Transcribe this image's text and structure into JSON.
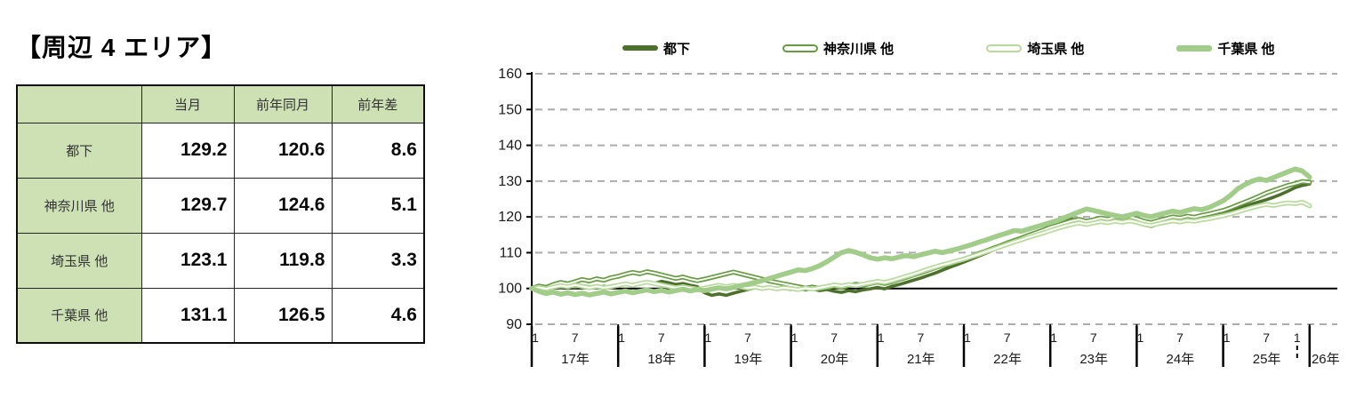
{
  "title": "【周辺 4 エリア】",
  "table": {
    "columns": [
      "",
      "当月",
      "前年同月",
      "前年差"
    ],
    "rows": [
      {
        "label": "都下",
        "values": [
          "129.2",
          "120.6",
          "8.6"
        ]
      },
      {
        "label": "神奈川県 他",
        "values": [
          "129.7",
          "124.6",
          "5.1"
        ]
      },
      {
        "label": "埼玉県 他",
        "values": [
          "123.1",
          "119.8",
          "3.3"
        ]
      },
      {
        "label": "千葉県 他",
        "values": [
          "131.1",
          "126.5",
          "4.6"
        ]
      }
    ],
    "header_bg_color": "#cde1b5"
  },
  "chart_data": {
    "type": "line",
    "interval": "monthly",
    "x_start": "2017-01",
    "x_end": "2026-01",
    "ylim": [
      90,
      160
    ],
    "yticks": [
      90,
      100,
      110,
      120,
      130,
      140,
      150,
      160
    ],
    "baseline_value": 100,
    "grid": "dashed-horizontal",
    "legend_position": "top",
    "month_tick_labels": [
      "1",
      "7"
    ],
    "year_labels": [
      "17年",
      "18年",
      "19年",
      "20年",
      "21年",
      "22年",
      "23年",
      "24年",
      "25年",
      "26年"
    ],
    "gridline_color": "#acacac",
    "series": [
      {
        "name": "都下",
        "key": "tokyo-outskirts",
        "color": "#4e702d",
        "style": "solid",
        "values": [
          100.0,
          100.4,
          100.0,
          100.6,
          100.2,
          100.7,
          100.3,
          100.8,
          100.5,
          100.2,
          100.6,
          100.3,
          100.8,
          101.3,
          100.9,
          101.5,
          101.9,
          101.4,
          102.0,
          101.6,
          101.1,
          101.4,
          100.9,
          100.5,
          98.8,
          98.1,
          98.5,
          98.1,
          98.7,
          99.2,
          99.7,
          100.2,
          99.8,
          100.2,
          99.8,
          100.1,
          99.7,
          100.0,
          99.6,
          99.9,
          99.4,
          99.7,
          99.2,
          98.9,
          99.4,
          99.1,
          99.6,
          99.9,
          100.3,
          99.9,
          100.6,
          101.1,
          101.7,
          102.3,
          102.9,
          103.6,
          104.3,
          105.1,
          105.9,
          106.6,
          107.4,
          108.2,
          109.0,
          109.8,
          110.7,
          111.5,
          112.3,
          113.1,
          113.9,
          114.7,
          115.5,
          116.3,
          117.2,
          118.0,
          118.8,
          119.4,
          118.7,
          117.9,
          118.5,
          119.1,
          119.6,
          119.2,
          119.8,
          119.4,
          118.9,
          117.7,
          117.3,
          118.0,
          118.7,
          119.3,
          119.0,
          119.5,
          119.3,
          119.8,
          120.2,
          120.6,
          121.0,
          121.6,
          122.3,
          123.0,
          123.6,
          124.2,
          124.8,
          125.5,
          126.3,
          127.2,
          128.2,
          128.8,
          129.2
        ]
      },
      {
        "name": "神奈川県 他",
        "key": "kanagawa",
        "color": "#669b41",
        "style": "outlined",
        "values": [
          100.0,
          100.7,
          100.3,
          101.1,
          101.7,
          101.3,
          101.9,
          102.5,
          102.1,
          102.7,
          102.3,
          103.0,
          103.4,
          104.0,
          104.5,
          104.1,
          104.7,
          104.3,
          103.8,
          103.3,
          102.8,
          103.2,
          102.6,
          102.2,
          102.6,
          103.1,
          103.6,
          104.1,
          104.6,
          104.1,
          103.6,
          103.1,
          102.6,
          102.1,
          101.7,
          101.3,
          100.9,
          100.5,
          100.1,
          100.4,
          100.0,
          100.3,
          100.7,
          100.3,
          100.8,
          101.2,
          100.9,
          101.4,
          101.8,
          101.4,
          101.9,
          102.5,
          103.1,
          103.8,
          104.4,
          105.1,
          105.8,
          106.4,
          106.9,
          107.5,
          108.2,
          108.9,
          109.7,
          110.4,
          111.2,
          111.9,
          112.7,
          113.4,
          114.1,
          114.9,
          115.6,
          116.3,
          117.1,
          117.7,
          118.3,
          118.9,
          119.3,
          118.8,
          119.2,
          119.7,
          119.4,
          119.9,
          119.6,
          120.0,
          119.5,
          118.8,
          118.4,
          119.0,
          119.5,
          120.0,
          119.7,
          120.2,
          119.9,
          120.4,
          120.8,
          121.3,
          121.8,
          122.5,
          123.3,
          124.1,
          124.9,
          125.8,
          126.7,
          127.4,
          128.1,
          128.8,
          129.3,
          129.9,
          129.7
        ]
      },
      {
        "name": "埼玉県 他",
        "key": "saitama",
        "color": "#b7da9b",
        "style": "outlined",
        "values": [
          100.0,
          100.3,
          99.9,
          100.4,
          100.8,
          100.5,
          101.0,
          100.6,
          100.2,
          100.6,
          100.2,
          100.5,
          100.9,
          101.3,
          100.9,
          101.4,
          101.8,
          101.4,
          101.0,
          100.6,
          100.2,
          100.5,
          100.1,
          99.8,
          100.1,
          100.5,
          100.9,
          100.5,
          100.9,
          100.5,
          100.1,
          100.4,
          100.0,
          100.3,
          99.9,
          100.2,
          100.0,
          99.7,
          100.1,
          99.8,
          100.2,
          100.6,
          101.0,
          100.7,
          101.1,
          100.8,
          101.2,
          101.6,
          102.0,
          101.7,
          102.2,
          102.8,
          103.4,
          104.0,
          104.7,
          105.4,
          106.0,
          106.6,
          107.1,
          107.7,
          108.2,
          108.9,
          109.5,
          110.2,
          110.9,
          111.6,
          112.3,
          113.0,
          113.6,
          114.3,
          114.9,
          115.5,
          116.2,
          116.8,
          117.4,
          117.9,
          118.3,
          117.9,
          118.3,
          118.7,
          118.4,
          118.8,
          118.5,
          118.9,
          118.5,
          117.9,
          117.6,
          118.1,
          118.5,
          118.9,
          118.6,
          119.0,
          118.8,
          119.2,
          119.5,
          119.9,
          120.3,
          120.8,
          121.4,
          122.0,
          122.6,
          123.1,
          123.5,
          123.2,
          123.6,
          123.9,
          123.7,
          124.1,
          123.1
        ]
      },
      {
        "name": "千葉県 他",
        "key": "chiba",
        "color": "#a2cc89",
        "style": "solid-thick",
        "values": [
          100.0,
          99.2,
          98.6,
          99.0,
          98.4,
          98.8,
          98.3,
          98.7,
          98.2,
          98.6,
          99.0,
          98.5,
          98.9,
          99.3,
          98.8,
          99.2,
          99.6,
          99.1,
          99.5,
          99.0,
          99.4,
          99.8,
          99.3,
          99.7,
          99.4,
          99.8,
          100.2,
          99.9,
          100.3,
          100.8,
          101.2,
          101.7,
          102.2,
          102.8,
          103.4,
          104.0,
          104.6,
          105.2,
          105.0,
          105.6,
          106.4,
          107.5,
          108.8,
          110.0,
          110.6,
          110.1,
          109.4,
          108.6,
          108.2,
          108.6,
          108.3,
          108.8,
          109.2,
          108.9,
          109.4,
          109.9,
          110.4,
          110.0,
          110.5,
          111.0,
          111.6,
          112.2,
          112.9,
          113.5,
          114.2,
          114.9,
          115.5,
          116.2,
          116.0,
          116.6,
          117.2,
          117.8,
          118.4,
          119.0,
          119.8,
          120.6,
          121.4,
          122.2,
          121.8,
          121.3,
          120.8,
          120.4,
          120.0,
          120.5,
          121.0,
          120.4,
          120.0,
          120.6,
          121.1,
          121.6,
          121.2,
          121.8,
          122.3,
          122.0,
          122.6,
          123.5,
          124.5,
          126.0,
          127.8,
          129.0,
          130.0,
          130.6,
          130.2,
          131.0,
          131.8,
          132.6,
          133.4,
          132.8,
          131.1
        ]
      }
    ]
  }
}
